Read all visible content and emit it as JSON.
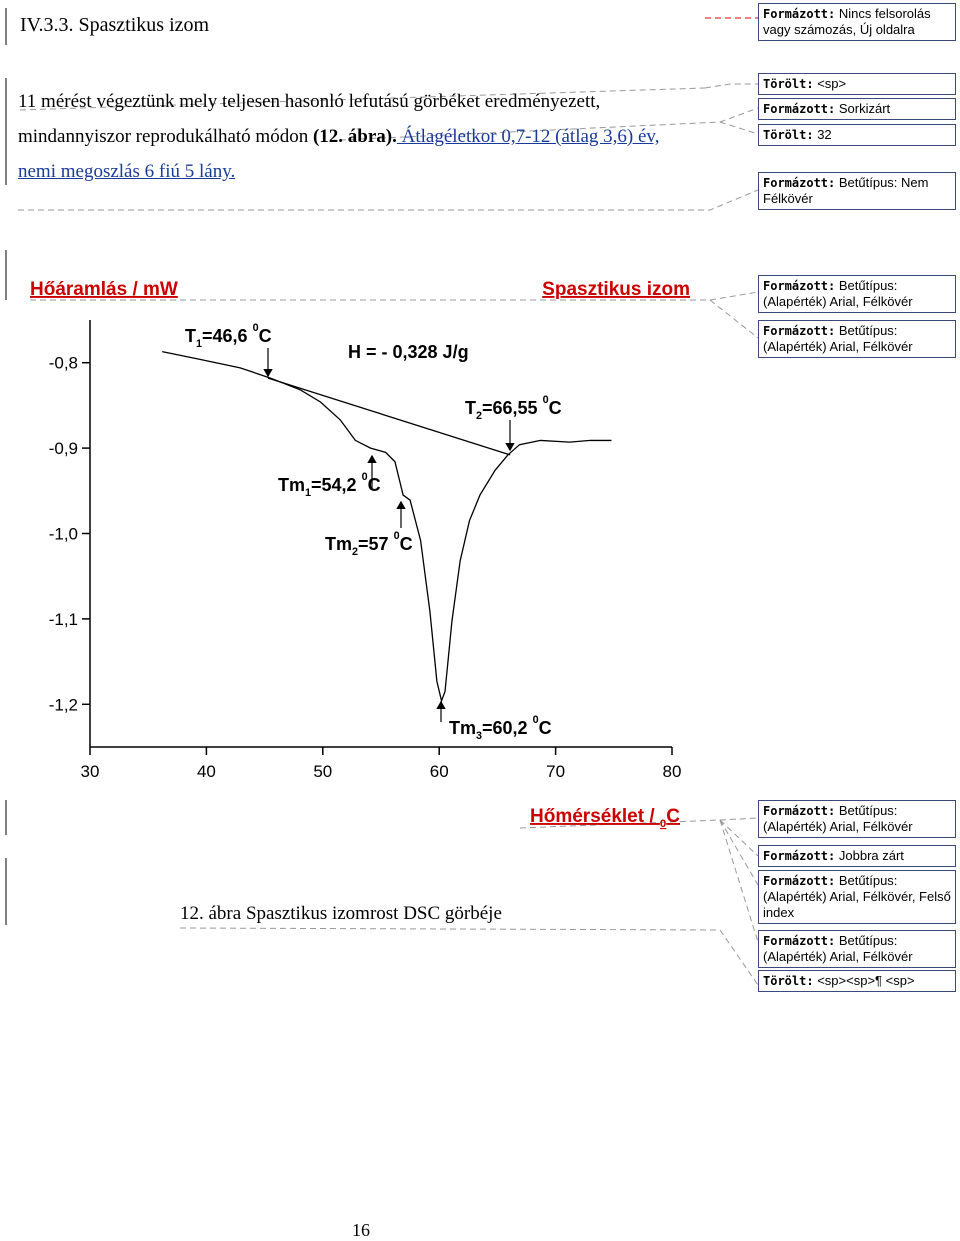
{
  "header": {
    "title": "IV.3.3. Spasztikus izom"
  },
  "paragraph": {
    "lines": [
      [
        {
          "text": "11 mérést végeztünk mely teljesen hasonló lefutású görbéket eredményezett,",
          "style": "plain"
        }
      ],
      [
        {
          "text": "mindannyiszor reprodukálható módon ",
          "style": "plain"
        },
        {
          "text": "(12. ábra).",
          "style": "bold"
        },
        {
          "text": " Átlagéletkor 0,7-12 (átlag 3,6) év,",
          "style": "inserted"
        }
      ],
      [
        {
          "text": "nemi megoszlás 6 fiú 5 lány.",
          "style": "inserted"
        }
      ]
    ]
  },
  "chart_data": {
    "type": "line",
    "y_label": "Hőáramlás / mW",
    "title": "Spasztikus izom",
    "x_label": [
      "Hőmérséklet / ",
      "0",
      "C"
    ],
    "xlim": [
      30,
      80
    ],
    "xticks": [
      30,
      40,
      50,
      60,
      70,
      80
    ],
    "ylim": [
      -1.25,
      -0.75
    ],
    "yticks": [
      {
        "value": -0.8,
        "label": "-0,8"
      },
      {
        "value": -0.9,
        "label": "-0,9"
      },
      {
        "value": -1.0,
        "label": "-1,0"
      },
      {
        "value": -1.1,
        "label": "-1,1"
      },
      {
        "value": -1.2,
        "label": "-1,2"
      }
    ],
    "series": [
      {
        "color": "#000000",
        "x": [
          36.2,
          39.4,
          42.9,
          45.5,
          48.1,
          49.8,
          51.5,
          52.8,
          54.1,
          55.4,
          56.2,
          56.9,
          57.5,
          58.4,
          59.2,
          59.8,
          60.2,
          60.5,
          61.1,
          61.8,
          62.6,
          63.5,
          64.8,
          65.9,
          66.9,
          68.7,
          71.2,
          73.0,
          74.8
        ],
        "values": [
          -0.787,
          -0.796,
          -0.806,
          -0.818,
          -0.832,
          -0.846,
          -0.867,
          -0.891,
          -0.9,
          -0.905,
          -0.916,
          -0.955,
          -0.961,
          -1.008,
          -1.091,
          -1.173,
          -1.196,
          -1.185,
          -1.102,
          -1.032,
          -0.985,
          -0.955,
          -0.926,
          -0.908,
          -0.896,
          -0.891,
          -0.893,
          -0.891,
          -0.891
        ]
      },
      {
        "color": "#000000",
        "x": [
          45.3,
          66.1
        ],
        "values": [
          -0.818,
          -0.908
        ]
      }
    ],
    "annotations": [
      {
        "label": [
          "T",
          "1",
          "=46,6 ",
          "0",
          "C"
        ]
      },
      {
        "label": [
          "H = - 0,328 J/g"
        ]
      },
      {
        "label": [
          "T",
          "2",
          "=66,55 ",
          "0",
          "C"
        ]
      },
      {
        "label": [
          "Tm",
          "1",
          "=54,2 ",
          "0",
          "C"
        ]
      },
      {
        "label": [
          "Tm",
          "2",
          "=57 ",
          "0",
          "C"
        ]
      },
      {
        "label": [
          "Tm",
          "3",
          "=60,2 ",
          "0",
          "C"
        ]
      }
    ]
  },
  "caption": "12. ábra Spasztikus izomrost DSC görbéje",
  "page_number": "16",
  "comments": [
    {
      "label": "Formázott:",
      "text": "Nincs felsorolás vagy számozás, Új oldalra"
    },
    {
      "label": "Törölt:",
      "text": "<sp>"
    },
    {
      "label": "Formázott:",
      "text": "Sorkizárt"
    },
    {
      "label": "Törölt:",
      "text": "32"
    },
    {
      "label": "Formázott:",
      "text": "Betűtípus: Nem Félkövér"
    },
    {
      "label": "Formázott:",
      "text": "Betűtípus: (Alapérték) Arial, Félkövér"
    },
    {
      "label": "Formázott:",
      "text": "Betűtípus: (Alapérték) Arial, Félkövér"
    },
    {
      "label": "Formázott:",
      "text": "Betűtípus: (Alapérték) Arial, Félkövér"
    },
    {
      "label": "Formázott:",
      "text": "Jobbra zárt"
    },
    {
      "label": "Formázott:",
      "text": "Betűtípus: (Alapérték) Arial, Félkövér, Felső index"
    },
    {
      "label": "Formázott:",
      "text": "Betűtípus: (Alapérték) Arial, Félkövér"
    },
    {
      "label": "Törölt:",
      "text": "<sp><sp>¶ <sp>"
    }
  ]
}
